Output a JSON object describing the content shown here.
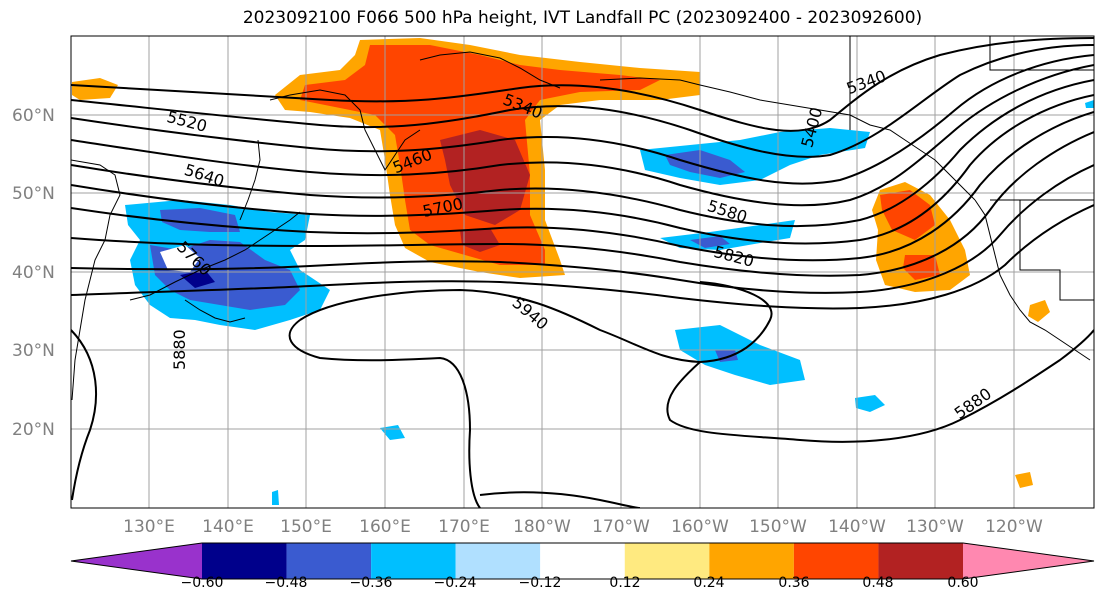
{
  "title": "2023092100 F066 500 hPa height, IVT Landfall PC (2023092400 - 2023092600)",
  "lat_labels": [
    "60°N",
    "50°N",
    "40°N",
    "30°N",
    "20°N"
  ],
  "lon_labels": [
    "130°E",
    "140°E",
    "150°E",
    "160°E",
    "170°E",
    "180°W",
    "170°W",
    "160°W",
    "150°W",
    "140°W",
    "130°W",
    "120°W"
  ],
  "height_contours": {
    "units": "dam*10 (m)",
    "labels": [
      "5340",
      "5340",
      "5400",
      "5460",
      "5520",
      "5580",
      "5640",
      "5700",
      "5760",
      "5820",
      "5880",
      "5880",
      "5940"
    ]
  },
  "colorbar": {
    "ticks": [
      "−0.60",
      "−0.48",
      "−0.36",
      "−0.24",
      "−0.12",
      "0.12",
      "0.24",
      "0.36",
      "0.48",
      "0.60"
    ],
    "bins": [
      {
        "color": "#9932cc"
      },
      {
        "color": "#00008b"
      },
      {
        "color": "#3a5bd0"
      },
      {
        "color": "#00bfff"
      },
      {
        "color": "#b0e0ff"
      },
      {
        "color": "#ffffff"
      },
      {
        "color": "#ffea80"
      },
      {
        "color": "#ffa500"
      },
      {
        "color": "#ff4500"
      },
      {
        "color": "#b22222"
      },
      {
        "color": "#ff88b0"
      }
    ]
  },
  "colors": {
    "grid": "#a0a0a0",
    "coast": "#000000",
    "contour": "#000000"
  }
}
